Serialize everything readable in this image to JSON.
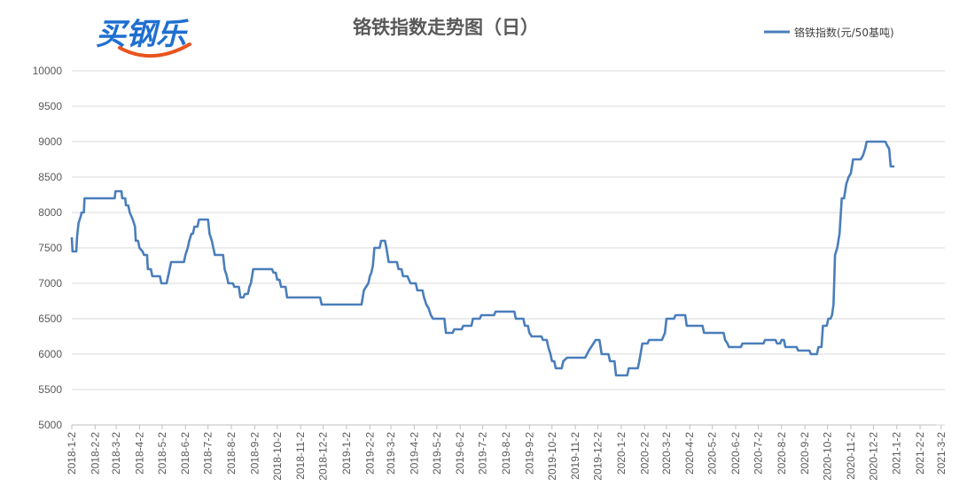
{
  "logo": {
    "text": "买钢乐",
    "color": "#1f6fd1",
    "swoosh_color": "#e8541e"
  },
  "chart_data": {
    "type": "line",
    "title": "铬铁指数走势图（日）",
    "xlabel": "",
    "ylabel": "",
    "ylim": [
      5000,
      10000
    ],
    "y_ticks": [
      "5000",
      "5500",
      "6000",
      "6500",
      "7000",
      "7500",
      "8000",
      "8500",
      "9000",
      "9500",
      "10000"
    ],
    "x_ticks": [
      "2018-1-2",
      "2018-2-2",
      "2018-3-2",
      "2018-4-2",
      "2018-5-2",
      "2018-6-2",
      "2018-7-2",
      "2018-8-2",
      "2018-9-2",
      "2018-10-2",
      "2018-11-2",
      "2018-12-2",
      "2019-1-2",
      "2019-2-2",
      "2019-3-2",
      "2019-4-2",
      "2019-5-2",
      "2019-6-2",
      "2019-7-2",
      "2019-8-2",
      "2019-9-2",
      "2019-10-2",
      "2019-11-2",
      "2019-12-2",
      "2020-1-2",
      "2020-2-2",
      "2020-3-2",
      "2020-4-2",
      "2020-5-2",
      "2020-6-2",
      "2020-7-2",
      "2020-8-2",
      "2020-9-2",
      "2020-10-2",
      "2020-11-2",
      "2020-12-2",
      "2021-1-2",
      "2021-2-2",
      "2021-3-2"
    ],
    "grid": true,
    "legend_position": "top-right",
    "series": [
      {
        "name": "铬铁指数(元/50基吨)",
        "color": "#4a7ebb",
        "points": [
          [
            "2018-01-02",
            7650
          ],
          [
            "2018-01-03",
            7450
          ],
          [
            "2018-01-08",
            7450
          ],
          [
            "2018-01-09",
            7650
          ],
          [
            "2018-01-11",
            7850
          ],
          [
            "2018-01-14",
            7950
          ],
          [
            "2018-01-15",
            8000
          ],
          [
            "2018-01-18",
            8000
          ],
          [
            "2018-01-19",
            8200
          ],
          [
            "2018-02-28",
            8200
          ],
          [
            "2018-03-01",
            8300
          ],
          [
            "2018-03-09",
            8300
          ],
          [
            "2018-03-10",
            8200
          ],
          [
            "2018-03-14",
            8200
          ],
          [
            "2018-03-15",
            8100
          ],
          [
            "2018-03-18",
            8100
          ],
          [
            "2018-03-20",
            8000
          ],
          [
            "2018-03-24",
            7900
          ],
          [
            "2018-03-27",
            7800
          ],
          [
            "2018-03-28",
            7600
          ],
          [
            "2018-03-31",
            7600
          ],
          [
            "2018-04-02",
            7500
          ],
          [
            "2018-04-06",
            7450
          ],
          [
            "2018-04-08",
            7400
          ],
          [
            "2018-04-12",
            7400
          ],
          [
            "2018-04-13",
            7200
          ],
          [
            "2018-04-17",
            7200
          ],
          [
            "2018-04-19",
            7100
          ],
          [
            "2018-04-29",
            7100
          ],
          [
            "2018-05-01",
            7000
          ],
          [
            "2018-05-08",
            7000
          ],
          [
            "2018-05-10",
            7100
          ],
          [
            "2018-05-12",
            7200
          ],
          [
            "2018-05-14",
            7300
          ],
          [
            "2018-05-31",
            7300
          ],
          [
            "2018-06-02",
            7400
          ],
          [
            "2018-06-05",
            7500
          ],
          [
            "2018-06-07",
            7600
          ],
          [
            "2018-06-10",
            7700
          ],
          [
            "2018-06-12",
            7700
          ],
          [
            "2018-06-14",
            7800
          ],
          [
            "2018-06-18",
            7800
          ],
          [
            "2018-06-20",
            7900
          ],
          [
            "2018-07-02",
            7900
          ],
          [
            "2018-07-04",
            7700
          ],
          [
            "2018-07-07",
            7600
          ],
          [
            "2018-07-09",
            7500
          ],
          [
            "2018-07-11",
            7400
          ],
          [
            "2018-07-22",
            7400
          ],
          [
            "2018-07-24",
            7200
          ],
          [
            "2018-07-27",
            7100
          ],
          [
            "2018-07-29",
            7000
          ],
          [
            "2018-08-04",
            7000
          ],
          [
            "2018-08-06",
            6950
          ],
          [
            "2018-08-12",
            6950
          ],
          [
            "2018-08-14",
            6800
          ],
          [
            "2018-08-18",
            6800
          ],
          [
            "2018-08-20",
            6850
          ],
          [
            "2018-08-24",
            6850
          ],
          [
            "2018-08-26",
            6950
          ],
          [
            "2018-08-28",
            7000
          ],
          [
            "2018-08-31",
            7200
          ],
          [
            "2018-09-25",
            7200
          ],
          [
            "2018-09-27",
            7150
          ],
          [
            "2018-09-30",
            7150
          ],
          [
            "2018-10-02",
            7050
          ],
          [
            "2018-10-05",
            7050
          ],
          [
            "2018-10-07",
            6950
          ],
          [
            "2018-10-13",
            6950
          ],
          [
            "2018-10-15",
            6800
          ],
          [
            "2018-11-28",
            6800
          ],
          [
            "2018-11-30",
            6700
          ],
          [
            "2019-01-22",
            6700
          ],
          [
            "2019-01-25",
            6900
          ],
          [
            "2019-01-28",
            6950
          ],
          [
            "2019-01-31",
            7000
          ],
          [
            "2019-02-02",
            7100
          ],
          [
            "2019-02-04",
            7150
          ],
          [
            "2019-02-06",
            7250
          ],
          [
            "2019-02-08",
            7500
          ],
          [
            "2019-02-15",
            7500
          ],
          [
            "2019-02-17",
            7600
          ],
          [
            "2019-02-22",
            7600
          ],
          [
            "2019-02-24",
            7500
          ],
          [
            "2019-02-27",
            7300
          ],
          [
            "2019-03-10",
            7300
          ],
          [
            "2019-03-12",
            7200
          ],
          [
            "2019-03-16",
            7200
          ],
          [
            "2019-03-18",
            7100
          ],
          [
            "2019-03-24",
            7100
          ],
          [
            "2019-03-26",
            7050
          ],
          [
            "2019-03-28",
            7000
          ],
          [
            "2019-04-04",
            7000
          ],
          [
            "2019-04-06",
            6900
          ],
          [
            "2019-04-13",
            6900
          ],
          [
            "2019-04-15",
            6800
          ],
          [
            "2019-04-18",
            6700
          ],
          [
            "2019-04-21",
            6650
          ],
          [
            "2019-04-24",
            6550
          ],
          [
            "2019-04-27",
            6500
          ],
          [
            "2019-05-12",
            6500
          ],
          [
            "2019-05-14",
            6300
          ],
          [
            "2019-05-23",
            6300
          ],
          [
            "2019-05-25",
            6350
          ],
          [
            "2019-06-04",
            6350
          ],
          [
            "2019-06-06",
            6400
          ],
          [
            "2019-06-17",
            6400
          ],
          [
            "2019-06-19",
            6500
          ],
          [
            "2019-06-28",
            6500
          ],
          [
            "2019-06-30",
            6550
          ],
          [
            "2019-07-17",
            6550
          ],
          [
            "2019-07-19",
            6600
          ],
          [
            "2019-08-13",
            6600
          ],
          [
            "2019-08-15",
            6500
          ],
          [
            "2019-08-25",
            6500
          ],
          [
            "2019-08-27",
            6400
          ],
          [
            "2019-08-31",
            6400
          ],
          [
            "2019-09-02",
            6300
          ],
          [
            "2019-09-05",
            6250
          ],
          [
            "2019-09-18",
            6250
          ],
          [
            "2019-09-20",
            6200
          ],
          [
            "2019-09-25",
            6200
          ],
          [
            "2019-09-27",
            6100
          ],
          [
            "2019-09-30",
            6000
          ],
          [
            "2019-10-02",
            5900
          ],
          [
            "2019-10-05",
            5900
          ],
          [
            "2019-10-07",
            5800
          ],
          [
            "2019-10-15",
            5800
          ],
          [
            "2019-10-17",
            5900
          ],
          [
            "2019-10-22",
            5950
          ],
          [
            "2019-11-15",
            5950
          ],
          [
            "2019-11-20",
            6050
          ],
          [
            "2019-11-26",
            6150
          ],
          [
            "2019-11-29",
            6200
          ],
          [
            "2019-12-04",
            6200
          ],
          [
            "2019-12-07",
            6000
          ],
          [
            "2019-12-16",
            6000
          ],
          [
            "2019-12-18",
            5900
          ],
          [
            "2019-12-24",
            5900
          ],
          [
            "2019-12-26",
            5700
          ],
          [
            "2020-01-10",
            5700
          ],
          [
            "2020-01-12",
            5800
          ],
          [
            "2020-01-24",
            5800
          ],
          [
            "2020-01-26",
            5900
          ],
          [
            "2020-01-30",
            6150
          ],
          [
            "2020-02-06",
            6150
          ],
          [
            "2020-02-08",
            6200
          ],
          [
            "2020-02-25",
            6200
          ],
          [
            "2020-02-27",
            6250
          ],
          [
            "2020-02-29",
            6300
          ],
          [
            "2020-03-02",
            6500
          ],
          [
            "2020-03-12",
            6500
          ],
          [
            "2020-03-14",
            6550
          ],
          [
            "2020-03-27",
            6550
          ],
          [
            "2020-03-29",
            6400
          ],
          [
            "2020-04-19",
            6400
          ],
          [
            "2020-04-21",
            6300
          ],
          [
            "2020-05-17",
            6300
          ],
          [
            "2020-05-19",
            6200
          ],
          [
            "2020-05-22",
            6150
          ],
          [
            "2020-05-24",
            6100
          ],
          [
            "2020-06-09",
            6100
          ],
          [
            "2020-06-11",
            6150
          ],
          [
            "2020-07-09",
            6150
          ],
          [
            "2020-07-11",
            6200
          ],
          [
            "2020-07-25",
            6200
          ],
          [
            "2020-07-27",
            6150
          ],
          [
            "2020-07-31",
            6150
          ],
          [
            "2020-08-02",
            6200
          ],
          [
            "2020-08-05",
            6200
          ],
          [
            "2020-08-07",
            6100
          ],
          [
            "2020-08-22",
            6100
          ],
          [
            "2020-08-24",
            6050
          ],
          [
            "2020-09-08",
            6050
          ],
          [
            "2020-09-10",
            6000
          ],
          [
            "2020-09-18",
            6000
          ],
          [
            "2020-09-20",
            6100
          ],
          [
            "2020-09-24",
            6100
          ],
          [
            "2020-09-26",
            6400
          ],
          [
            "2020-10-01",
            6400
          ],
          [
            "2020-10-03",
            6500
          ],
          [
            "2020-10-06",
            6500
          ],
          [
            "2020-10-08",
            6550
          ],
          [
            "2020-10-10",
            6700
          ],
          [
            "2020-10-12",
            7400
          ],
          [
            "2020-10-15",
            7500
          ],
          [
            "2020-10-18",
            7700
          ],
          [
            "2020-10-21",
            8200
          ],
          [
            "2020-10-24",
            8200
          ],
          [
            "2020-10-27",
            8400
          ],
          [
            "2020-10-30",
            8500
          ],
          [
            "2020-11-02",
            8550
          ],
          [
            "2020-11-05",
            8750
          ],
          [
            "2020-11-15",
            8750
          ],
          [
            "2020-11-18",
            8800
          ],
          [
            "2020-11-21",
            8900
          ],
          [
            "2020-11-23",
            9000
          ],
          [
            "2020-12-18",
            9000
          ],
          [
            "2020-12-20",
            8950
          ],
          [
            "2020-12-23",
            8900
          ],
          [
            "2020-12-25",
            8650
          ],
          [
            "2020-12-30",
            8650
          ]
        ]
      }
    ]
  }
}
